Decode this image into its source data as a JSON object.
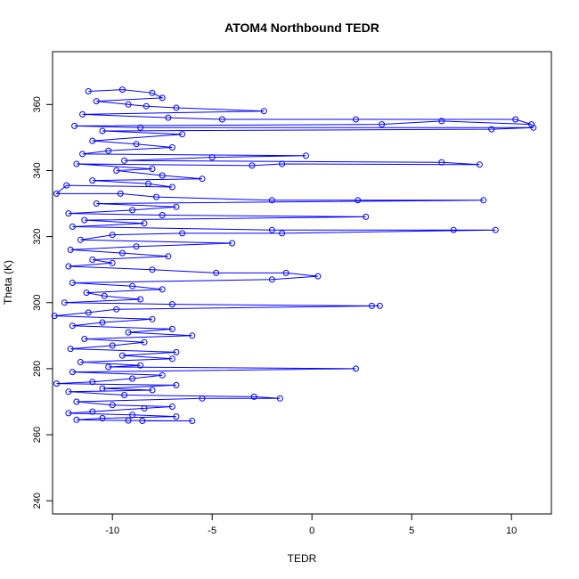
{
  "chart_data": {
    "type": "line",
    "title": "ATOM4 Northbound TEDR",
    "xlabel": "TEDR",
    "ylabel": "Theta (K)",
    "xlim": [
      -13.0,
      12.0
    ],
    "ylim": [
      236.0,
      376.0
    ],
    "x_ticks": [
      -10,
      -5,
      0,
      5,
      10
    ],
    "y_ticks": [
      240,
      260,
      280,
      300,
      320,
      340,
      360
    ],
    "grid": false,
    "legend": "none",
    "marker": "open-circle",
    "series_color": "#0000ff",
    "series": [
      {
        "points": [
          [
            -11.2,
            364
          ],
          [
            -9.5,
            364.5
          ],
          [
            -8.0,
            363.5
          ],
          [
            -7.5,
            362
          ],
          [
            -10.8,
            361
          ],
          [
            -9.2,
            360
          ],
          [
            -8.3,
            359.5
          ],
          [
            -6.8,
            359
          ],
          [
            -2.4,
            358
          ],
          [
            -11.5,
            357
          ],
          [
            -7.2,
            356
          ],
          [
            -4.5,
            355.5
          ],
          [
            2.2,
            355.5
          ],
          [
            10.2,
            355.5
          ],
          [
            11.0,
            354
          ],
          [
            6.5,
            355
          ],
          [
            3.5,
            354
          ],
          [
            -11.9,
            353.5
          ],
          [
            -8.6,
            353
          ],
          [
            11.1,
            353
          ],
          [
            9.0,
            352.5
          ],
          [
            -10.5,
            352
          ],
          [
            -6.5,
            351
          ],
          [
            -11.0,
            349
          ],
          [
            -8.8,
            348
          ],
          [
            -7.0,
            347
          ],
          [
            -10.2,
            346
          ],
          [
            -11.5,
            345
          ],
          [
            -0.3,
            344.5
          ],
          [
            -5.0,
            344
          ],
          [
            -9.4,
            343
          ],
          [
            6.5,
            342.5
          ],
          [
            8.4,
            341.8
          ],
          [
            -1.5,
            342
          ],
          [
            -3.0,
            341.5
          ],
          [
            -11.8,
            342
          ],
          [
            -8.0,
            340.5
          ],
          [
            -9.8,
            340
          ],
          [
            -7.5,
            338.5
          ],
          [
            -5.5,
            337.5
          ],
          [
            -11.0,
            337
          ],
          [
            -8.2,
            336
          ],
          [
            -7.0,
            335
          ],
          [
            -12.3,
            335.5
          ],
          [
            -12.8,
            333
          ],
          [
            -9.6,
            333
          ],
          [
            -7.8,
            332
          ],
          [
            -2.0,
            331
          ],
          [
            2.3,
            331
          ],
          [
            8.6,
            331
          ],
          [
            -10.8,
            330
          ],
          [
            -6.8,
            329
          ],
          [
            -9.0,
            328
          ],
          [
            -12.2,
            327
          ],
          [
            -7.5,
            326.5
          ],
          [
            2.7,
            326
          ],
          [
            -11.4,
            325
          ],
          [
            -8.4,
            324
          ],
          [
            -12.0,
            323
          ],
          [
            -2.0,
            322
          ],
          [
            7.1,
            322
          ],
          [
            9.2,
            322
          ],
          [
            -1.5,
            321
          ],
          [
            -6.5,
            321
          ],
          [
            -10.0,
            320.5
          ],
          [
            -11.6,
            319
          ],
          [
            -4.0,
            318
          ],
          [
            -8.8,
            317
          ],
          [
            -12.1,
            316
          ],
          [
            -9.5,
            315
          ],
          [
            -7.2,
            314
          ],
          [
            -11.0,
            313
          ],
          [
            -10.0,
            312
          ],
          [
            -12.2,
            311
          ],
          [
            -8.0,
            310
          ],
          [
            -4.8,
            309
          ],
          [
            -1.3,
            309
          ],
          [
            0.3,
            308
          ],
          [
            -2.0,
            307
          ],
          [
            -12.0,
            306
          ],
          [
            -9.0,
            305
          ],
          [
            -7.5,
            304
          ],
          [
            -11.3,
            303
          ],
          [
            -10.4,
            302
          ],
          [
            -8.6,
            301
          ],
          [
            -12.4,
            300
          ],
          [
            -7.0,
            299.5
          ],
          [
            3.0,
            299
          ],
          [
            3.4,
            299
          ],
          [
            -9.8,
            298
          ],
          [
            -11.2,
            297
          ],
          [
            -12.9,
            296
          ],
          [
            -8.0,
            295
          ],
          [
            -10.5,
            294
          ],
          [
            -12.0,
            293
          ],
          [
            -7.0,
            292
          ],
          [
            -9.2,
            291
          ],
          [
            -6.0,
            290
          ],
          [
            -11.4,
            289
          ],
          [
            -8.4,
            288
          ],
          [
            -10.0,
            287
          ],
          [
            -12.1,
            286
          ],
          [
            -6.8,
            285
          ],
          [
            -9.5,
            284
          ],
          [
            -7.0,
            283
          ],
          [
            -11.6,
            282
          ],
          [
            -8.6,
            281
          ],
          [
            -10.2,
            280.5
          ],
          [
            2.2,
            280
          ],
          [
            -12.0,
            279
          ],
          [
            -7.5,
            278
          ],
          [
            -9.0,
            277
          ],
          [
            -11.0,
            276
          ],
          [
            -12.8,
            275.5
          ],
          [
            -6.8,
            275
          ],
          [
            -10.5,
            274
          ],
          [
            -8.0,
            273.5
          ],
          [
            -12.2,
            273
          ],
          [
            -9.4,
            272
          ],
          [
            -2.9,
            271.5
          ],
          [
            -1.6,
            271
          ],
          [
            -5.5,
            271
          ],
          [
            -11.8,
            270
          ],
          [
            -10.0,
            269
          ],
          [
            -7.0,
            268.5
          ],
          [
            -8.4,
            268
          ],
          [
            -11.0,
            267
          ],
          [
            -12.2,
            266.5
          ],
          [
            -9.0,
            266
          ],
          [
            -6.8,
            265.5
          ],
          [
            -10.5,
            265
          ],
          [
            -11.8,
            264.5
          ],
          [
            -9.2,
            264.3
          ],
          [
            -6.0,
            264.2
          ],
          [
            -8.5,
            264.2
          ]
        ]
      }
    ]
  }
}
